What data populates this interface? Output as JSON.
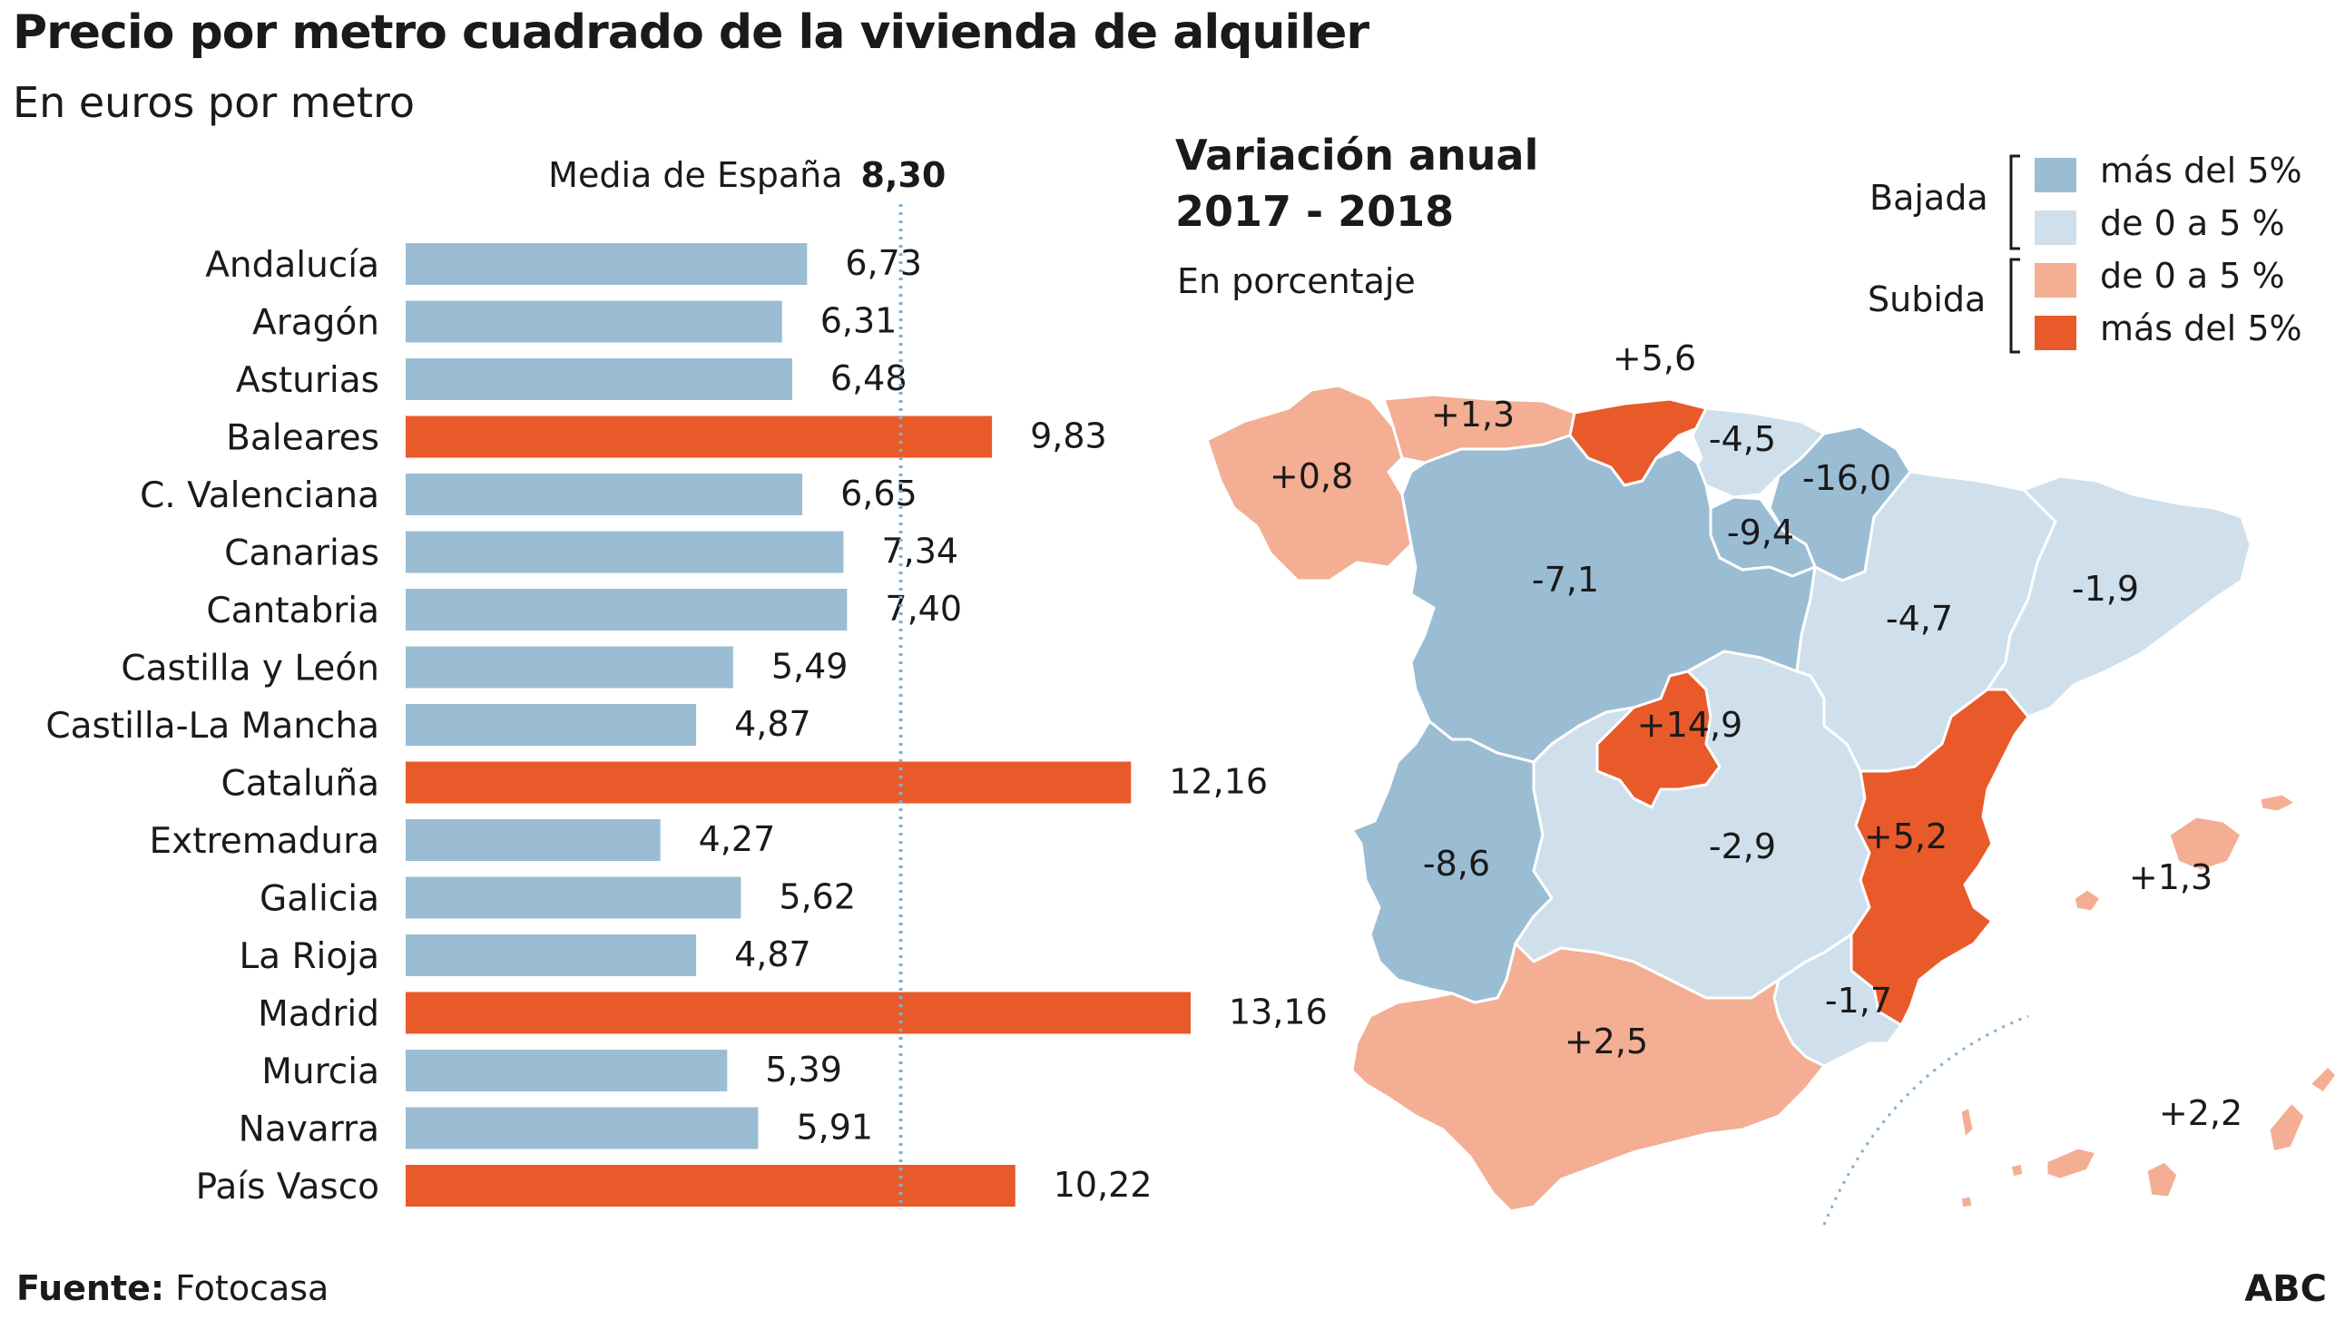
{
  "title": "Precio por metro cuadrado de la vivienda de alquiler",
  "subtitle": "En euros por metro",
  "average": {
    "label": "Media de España",
    "value": "8,30",
    "numeric": 8.3
  },
  "colors": {
    "below": "#9bbdd4",
    "above": "#e95a2a",
    "avg_line": "#7fb0d0"
  },
  "chart_data": [
    {
      "type": "bar",
      "orientation": "horizontal",
      "title": "Precio por metro cuadrado de la vivienda de alquiler",
      "subtitle": "En euros por metro",
      "categories": [
        "Andalucía",
        "Aragón",
        "Asturias",
        "Baleares",
        "C. Valenciana",
        "Canarias",
        "Cantabria",
        "Castilla y León",
        "Castilla-La Mancha",
        "Cataluña",
        "Extremadura",
        "Galicia",
        "La Rioja",
        "Madrid",
        "Murcia",
        "Navarra",
        "País Vasco"
      ],
      "values": [
        6.73,
        6.31,
        6.48,
        9.83,
        6.65,
        7.34,
        7.4,
        5.49,
        4.87,
        12.16,
        4.27,
        5.62,
        4.87,
        13.16,
        5.39,
        5.91,
        10.22
      ],
      "labels": [
        "6,73",
        "6,31",
        "6,48",
        "9,83",
        "6,65",
        "7,34",
        "7,40",
        "5,49",
        "4,87",
        "12,16",
        "4,27",
        "5,62",
        "4,87",
        "13,16",
        "5,39",
        "5,91",
        "10,22"
      ],
      "reference_line": {
        "label": "Media de España",
        "value": 8.3
      },
      "xlim": [
        0,
        13.16
      ],
      "grid": false
    },
    {
      "type": "choropleth",
      "title": "Variación anual 2017 - 2018",
      "unit": "En porcentaje",
      "regions": [
        {
          "name": "Galicia",
          "label": "+0,8",
          "value": 0.8,
          "class": "up_small"
        },
        {
          "name": "Asturias",
          "label": "+1,3",
          "value": 1.3,
          "class": "up_small"
        },
        {
          "name": "Cantabria",
          "label": "+5,6",
          "value": 5.6,
          "class": "up_big"
        },
        {
          "name": "País Vasco",
          "label": "-4,5",
          "value": -4.5,
          "class": "down_small"
        },
        {
          "name": "Navarra",
          "label": "-16,0",
          "value": -16.0,
          "class": "down_big"
        },
        {
          "name": "La Rioja",
          "label": "-9,4",
          "value": -9.4,
          "class": "down_big"
        },
        {
          "name": "Castilla y León",
          "label": "-7,1",
          "value": -7.1,
          "class": "down_big"
        },
        {
          "name": "Aragón",
          "label": "-4,7",
          "value": -4.7,
          "class": "down_small"
        },
        {
          "name": "Cataluña",
          "label": "-1,9",
          "value": -1.9,
          "class": "down_small"
        },
        {
          "name": "Madrid",
          "label": "+14,9",
          "value": 14.9,
          "class": "up_big"
        },
        {
          "name": "Extremadura",
          "label": "-8,6",
          "value": -8.6,
          "class": "down_big"
        },
        {
          "name": "Castilla-La Mancha",
          "label": "-2,9",
          "value": -2.9,
          "class": "down_small"
        },
        {
          "name": "C. Valenciana",
          "label": "+5,2",
          "value": 5.2,
          "class": "up_big"
        },
        {
          "name": "Murcia",
          "label": "-1,7",
          "value": -1.7,
          "class": "down_small"
        },
        {
          "name": "Andalucía",
          "label": "+2,5",
          "value": 2.5,
          "class": "up_small"
        },
        {
          "name": "Baleares",
          "label": "+1,3",
          "value": 1.3,
          "class": "up_small"
        },
        {
          "name": "Canarias",
          "label": "+2,2",
          "value": 2.2,
          "class": "up_small"
        }
      ]
    }
  ],
  "map": {
    "title_line1": "Variación anual",
    "title_line2": "2017 - 2018",
    "unit": "En porcentaje",
    "colors": {
      "down_big": "#9bbdd4",
      "down_small": "#cfe0ec",
      "up_small": "#f3ae93",
      "up_big": "#e95a2a"
    }
  },
  "legend": {
    "bajada": "Bajada",
    "subida": "Subida",
    "items": [
      {
        "label": "más del 5%",
        "color": "#9bbdd4"
      },
      {
        "label": "de 0 a 5 %",
        "color": "#cfe0ec"
      },
      {
        "label": "de 0 a 5 %",
        "color": "#f3ae93"
      },
      {
        "label": "más del 5%",
        "color": "#e95a2a"
      }
    ]
  },
  "footer": {
    "source_label": "Fuente:",
    "source": "Fotocasa",
    "brand": "ABC"
  }
}
